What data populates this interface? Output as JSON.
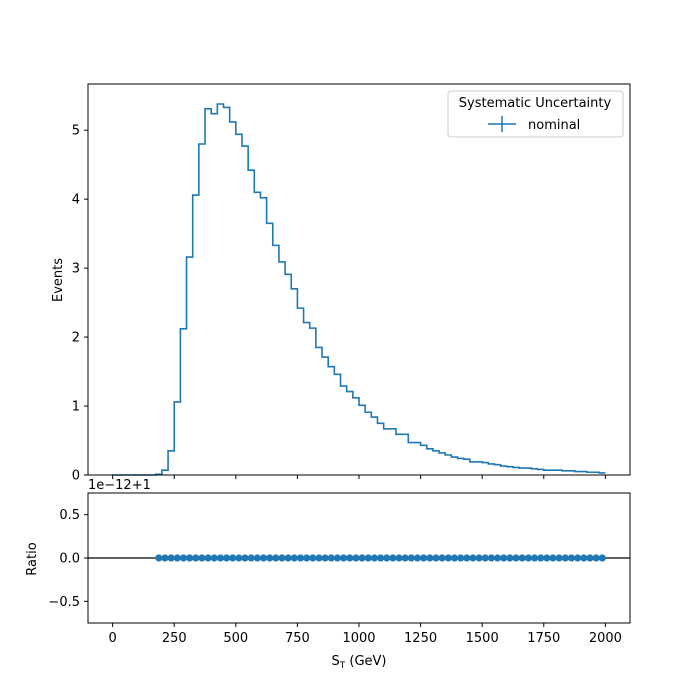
{
  "chart_data": [
    {
      "type": "line",
      "drawstyle": "steps",
      "xlabel": "",
      "ylabel": "Events",
      "xlim": [
        -100,
        2100
      ],
      "ylim": [
        0,
        5.67
      ],
      "yticks": [
        "0",
        "1",
        "2",
        "3",
        "4",
        "5"
      ],
      "xticks": [
        0,
        250,
        500,
        750,
        1000,
        1250,
        1500,
        1750,
        2000
      ],
      "grid": false,
      "legend": {
        "title": "Systematic Uncertainty",
        "placement": "top-right",
        "entries": [
          "nominal"
        ]
      },
      "bin_edges": [
        0,
        25,
        50,
        75,
        100,
        125,
        150,
        175,
        200,
        225,
        250,
        275,
        300,
        325,
        350,
        375,
        400,
        425,
        450,
        475,
        500,
        525,
        550,
        575,
        600,
        625,
        650,
        675,
        700,
        725,
        750,
        775,
        800,
        825,
        850,
        875,
        900,
        925,
        950,
        975,
        1000,
        1025,
        1050,
        1075,
        1100,
        1125,
        1150,
        1175,
        1200,
        1225,
        1250,
        1275,
        1300,
        1325,
        1350,
        1375,
        1400,
        1425,
        1450,
        1475,
        1500,
        1525,
        1550,
        1575,
        1600,
        1625,
        1650,
        1675,
        1700,
        1725,
        1750,
        1775,
        1800,
        1825,
        1850,
        1875,
        1900,
        1925,
        1950,
        1975,
        2000
      ],
      "series": [
        {
          "name": "nominal",
          "color": "#1f77b4",
          "values": [
            0,
            0,
            0,
            0,
            0,
            0,
            0,
            0.01,
            0.07,
            0.35,
            1.06,
            2.12,
            3.16,
            4.06,
            4.8,
            5.31,
            5.24,
            5.38,
            5.33,
            5.12,
            4.94,
            4.77,
            4.42,
            4.1,
            4.02,
            3.65,
            3.33,
            3.09,
            2.91,
            2.7,
            2.42,
            2.21,
            2.13,
            1.85,
            1.71,
            1.57,
            1.46,
            1.29,
            1.21,
            1.12,
            1.01,
            0.91,
            0.84,
            0.75,
            0.67,
            0.67,
            0.59,
            0.59,
            0.47,
            0.47,
            0.43,
            0.38,
            0.35,
            0.32,
            0.29,
            0.26,
            0.24,
            0.23,
            0.19,
            0.19,
            0.18,
            0.16,
            0.15,
            0.13,
            0.12,
            0.11,
            0.1,
            0.1,
            0.09,
            0.08,
            0.07,
            0.07,
            0.07,
            0.06,
            0.06,
            0.05,
            0.05,
            0.04,
            0.04,
            0.03
          ]
        }
      ]
    },
    {
      "type": "scatter",
      "xlabel": "S",
      "xlabel_sub": "T",
      "xlabel_unit": " (GeV)",
      "ylabel": "Ratio",
      "offset_text": "1e−12+1",
      "xlim": [
        -100,
        2100
      ],
      "ylim": [
        -0.75,
        0.75
      ],
      "xticks": [
        "0",
        "250",
        "500",
        "750",
        "1000",
        "1250",
        "1500",
        "1750",
        "2000"
      ],
      "yticks": [
        "−0.5",
        "0.0",
        "0.5"
      ],
      "reference_line": 0,
      "grid": false,
      "series": [
        {
          "color": "#1f77b4",
          "x": [
            187.5,
            212.5,
            237.5,
            262.5,
            287.5,
            312.5,
            337.5,
            362.5,
            387.5,
            412.5,
            437.5,
            462.5,
            487.5,
            512.5,
            537.5,
            562.5,
            587.5,
            612.5,
            637.5,
            662.5,
            687.5,
            712.5,
            737.5,
            762.5,
            787.5,
            812.5,
            837.5,
            862.5,
            887.5,
            912.5,
            937.5,
            962.5,
            987.5,
            1012.5,
            1037.5,
            1062.5,
            1087.5,
            1112.5,
            1137.5,
            1162.5,
            1187.5,
            1212.5,
            1237.5,
            1262.5,
            1287.5,
            1312.5,
            1337.5,
            1362.5,
            1387.5,
            1412.5,
            1437.5,
            1462.5,
            1487.5,
            1512.5,
            1537.5,
            1562.5,
            1587.5,
            1612.5,
            1637.5,
            1662.5,
            1687.5,
            1712.5,
            1737.5,
            1762.5,
            1787.5,
            1812.5,
            1837.5,
            1862.5,
            1887.5,
            1912.5,
            1937.5,
            1962.5,
            1987.5
          ],
          "y": [
            0,
            0,
            0,
            0,
            0,
            0,
            0,
            0,
            0,
            0,
            0,
            0,
            0,
            0,
            0,
            0,
            0,
            0,
            0,
            0,
            0,
            0,
            0,
            0,
            0,
            0,
            0,
            0,
            0,
            0,
            0,
            0,
            0,
            0,
            0,
            0,
            0,
            0,
            0,
            0,
            0,
            0,
            0,
            0,
            0,
            0,
            0,
            0,
            0,
            0,
            0,
            0,
            0,
            0,
            0,
            0,
            0,
            0,
            0,
            0,
            0,
            0,
            0,
            0,
            0,
            0,
            0,
            0,
            0,
            0,
            0,
            0,
            0
          ]
        }
      ]
    }
  ]
}
